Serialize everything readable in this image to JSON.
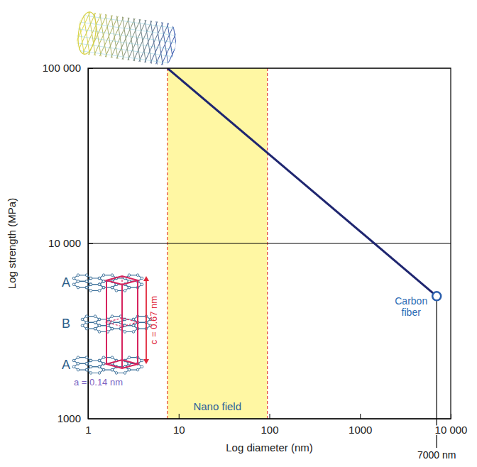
{
  "chart_data": {
    "type": "line",
    "x_label": "Log diameter (nm)",
    "y_label": "Log strength (MPa)",
    "x": [
      7.5,
      7000
    ],
    "values": [
      100000,
      5000
    ],
    "color": "#1f2670",
    "log": true,
    "grid": "y",
    "xlim": [
      1,
      10000
    ],
    "ylim": [
      1000,
      100000
    ],
    "xticks": [
      1,
      10,
      100,
      1000,
      {
        "value": 10000,
        "label": "10 000"
      }
    ],
    "yticks": [
      1000,
      {
        "value": 10000,
        "label": "10 000"
      },
      {
        "value": 100000,
        "label": "100 000"
      }
    ],
    "nano_field": {
      "label": "Nano field",
      "range": [
        7.5,
        95
      ]
    },
    "annotations": [
      {
        "text": "Carbon fiber",
        "x": 7000,
        "y": 5000
      },
      {
        "text": "7000 nm",
        "x": 7000
      }
    ],
    "inset": {
      "layers": [
        "A",
        "B",
        "A"
      ],
      "c_label": "c = 0.67 nm",
      "a_label": "a = 0.14 nm"
    }
  }
}
